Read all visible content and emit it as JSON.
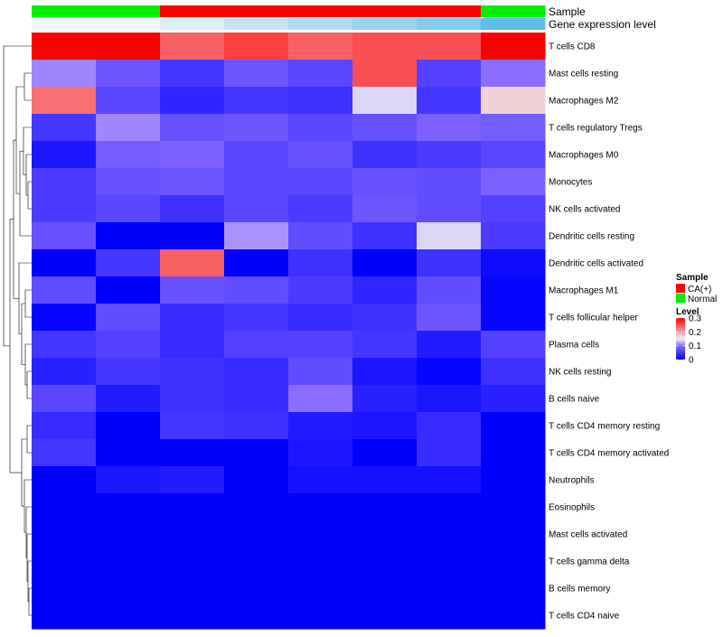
{
  "chart_data": {
    "type": "heatmap",
    "title": "",
    "annotation_rows": [
      {
        "name": "Sample",
        "values": [
          "Normal",
          "Normal",
          "CA(+)",
          "CA(+)",
          "CA(+)",
          "CA(+)",
          "CA(+)",
          "Normal"
        ]
      },
      {
        "name": "Gene expression level",
        "values": [
          0.0,
          0.0,
          0.04,
          0.08,
          0.12,
          0.16,
          0.2,
          0.26
        ]
      }
    ],
    "rows": [
      "T cells CD8",
      "Mast cells resting",
      "Macrophages M2",
      "T cells regulatory  Tregs",
      "Macrophages M0",
      "Monocytes",
      "NK cells activated",
      "Dendritic cells resting",
      "Dendritic cells activated",
      "Macrophages M1",
      "T cells follicular helper",
      "Plasma cells",
      "NK cells resting",
      "B cells naive",
      "T cells CD4 memory resting",
      "T cells CD4 memory activated",
      "Neutrophils",
      "Eosinophils",
      "Mast cells activated",
      "T cells gamma delta",
      "B cells memory",
      "T cells CD4 naive"
    ],
    "values": [
      [
        0.3,
        0.3,
        0.24,
        0.26,
        0.24,
        0.25,
        0.25,
        0.3
      ],
      [
        0.11,
        0.08,
        0.05,
        0.08,
        0.065,
        0.25,
        0.06,
        0.1
      ],
      [
        0.23,
        0.065,
        0.035,
        0.05,
        0.045,
        0.14,
        0.05,
        0.17
      ],
      [
        0.05,
        0.11,
        0.075,
        0.08,
        0.065,
        0.075,
        0.09,
        0.085
      ],
      [
        0.02,
        0.085,
        0.09,
        0.065,
        0.075,
        0.045,
        0.055,
        0.065
      ],
      [
        0.055,
        0.075,
        0.08,
        0.065,
        0.065,
        0.075,
        0.07,
        0.09
      ],
      [
        0.055,
        0.065,
        0.045,
        0.065,
        0.055,
        0.08,
        0.07,
        0.06
      ],
      [
        0.075,
        0.0,
        0.0,
        0.115,
        0.07,
        0.045,
        0.14,
        0.055
      ],
      [
        0.0,
        0.05,
        0.24,
        0.0,
        0.045,
        0.0,
        0.045,
        0.01
      ],
      [
        0.07,
        0.0,
        0.075,
        0.07,
        0.055,
        0.035,
        0.07,
        0.005
      ],
      [
        0.005,
        0.07,
        0.04,
        0.05,
        0.04,
        0.045,
        0.08,
        0.005
      ],
      [
        0.05,
        0.06,
        0.04,
        0.06,
        0.06,
        0.05,
        0.025,
        0.06
      ],
      [
        0.03,
        0.05,
        0.045,
        0.04,
        0.07,
        0.02,
        0.005,
        0.045
      ],
      [
        0.065,
        0.025,
        0.045,
        0.04,
        0.1,
        0.03,
        0.02,
        0.03
      ],
      [
        0.04,
        0.0,
        0.05,
        0.045,
        0.025,
        0.02,
        0.04,
        0.0
      ],
      [
        0.05,
        0.0,
        0.0,
        0.0,
        0.02,
        0.0,
        0.04,
        0.0
      ],
      [
        0.0,
        0.02,
        0.025,
        0.0,
        0.015,
        0.015,
        0.015,
        0.0
      ],
      [
        0.0,
        0.0,
        0.0,
        0.0,
        0.0,
        0.0,
        0.0,
        0.0
      ],
      [
        0.0,
        0.0,
        0.0,
        0.0,
        0.0,
        0.0,
        0.0,
        0.0
      ],
      [
        0.0,
        0.0,
        0.0,
        0.0,
        0.0,
        0.0,
        0.0,
        0.0
      ],
      [
        0.0,
        0.0,
        0.0,
        0.0,
        0.0,
        0.0,
        0.0,
        0.0
      ],
      [
        0.0,
        0.0,
        0.0,
        0.0,
        0.0,
        0.0,
        0.0,
        0.0
      ]
    ],
    "color_scale": {
      "min": 0,
      "max": 0.3,
      "stops": [
        {
          "value": 0,
          "color": "#0000ff"
        },
        {
          "value": 0.1,
          "color": "#8a6cff"
        },
        {
          "value": 0.15,
          "color": "#f0f0f8"
        },
        {
          "value": 0.3,
          "color": "#ff0000"
        }
      ]
    },
    "annotation_colors": {
      "Sample": {
        "CA(+)": "#ff0000",
        "Normal": "#00ee00"
      },
      "Gene expression level": {
        "low": "#f2f6fb",
        "high": "#5fbfe8"
      }
    },
    "legend": {
      "position": "right",
      "sample": {
        "title": "Sample",
        "items": [
          "CA(+)",
          "Normal"
        ]
      },
      "level": {
        "title": "Level",
        "ticks": [
          "0.3",
          "0.2",
          "0.1",
          "0"
        ]
      }
    },
    "row_dendrogram": true
  }
}
